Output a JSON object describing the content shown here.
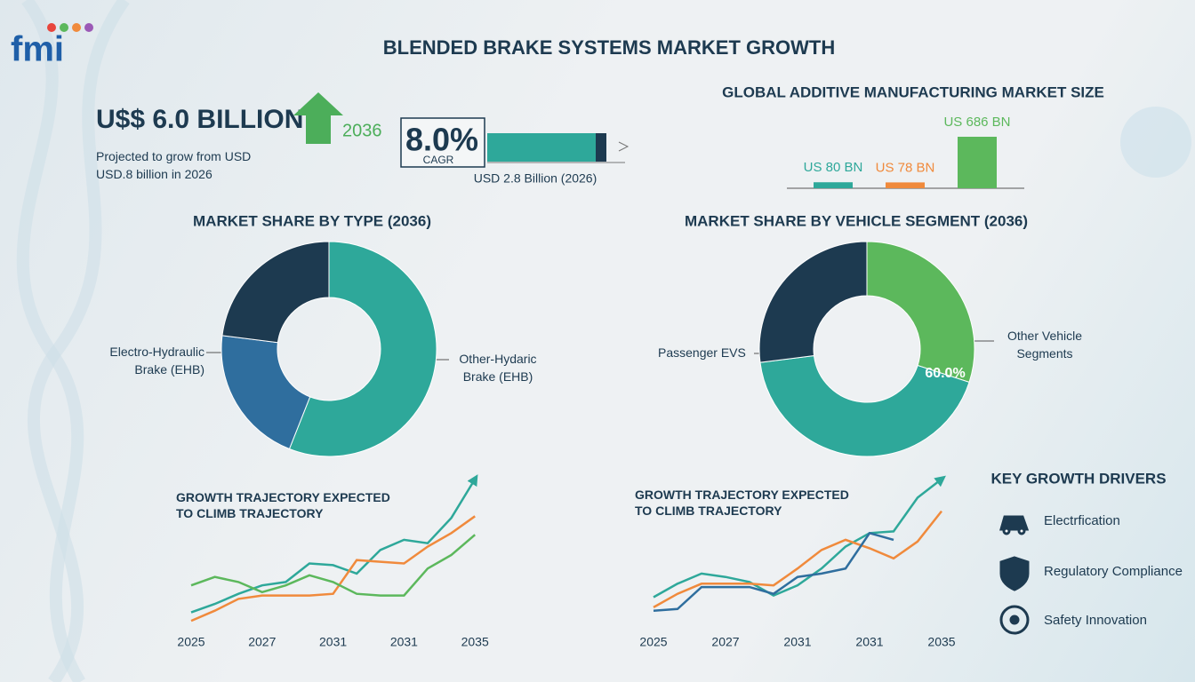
{
  "header": {
    "logo": "fmi",
    "title": "BLENDED BRAKE SYSTEMS MARKET GROWTH"
  },
  "headline": {
    "value_text": "U$$ 6.0 BILLION",
    "year": "2036",
    "description": "Projected to grow from USD USD.8 billion in 2026"
  },
  "cagr": {
    "value": "8.0%",
    "label": "CAGR",
    "base": "USD 2.8 Billion (2026)"
  },
  "drivers": {
    "title": "KEY GROWTH DRIVERS",
    "items": [
      "Electrfication",
      "Regulatory Compliance",
      "Safety Innovation"
    ]
  },
  "chart_data": [
    {
      "type": "bar",
      "title": "GLOBAL ADDITIVE MANUFACTURING MARKET SIZE",
      "values": [
        80,
        78,
        686
      ],
      "value_labels": [
        "US 80 BN",
        "US 78 BN",
        "US 686 BN"
      ],
      "colors": [
        "#2ea89a",
        "#f08a3c",
        "#5cb85c"
      ]
    },
    {
      "type": "donut",
      "title": "MARKET SHARE BY TYPE (2036)",
      "categories": [
        "Other-Hydaric Brake (EHB)",
        "Electro-Hydraulic Brake (EHB)",
        null
      ],
      "values": [
        56,
        21,
        23
      ],
      "colors": [
        "#2ea89a",
        "#2f6e9e",
        "#1d3a50"
      ]
    },
    {
      "type": "donut",
      "title": "MARKET SHARE BY VEHICLE SEGMENT (2036)",
      "categories": [
        "Other Vehicle Segments",
        null,
        "Passenger EVS"
      ],
      "values": [
        30,
        43,
        27
      ],
      "colors": [
        "#5cb85c",
        "#2ea89a",
        "#1d3a50"
      ],
      "annotation": "60.0%"
    },
    {
      "type": "line",
      "title": "GROWTH TRAJECTORY EXPECTED TO CLIMB TRAJECTORY",
      "categories": [
        "2025",
        null,
        null,
        "2027",
        null,
        null,
        "2031",
        null,
        null,
        "2031",
        null,
        null,
        "2035"
      ],
      "ylim": [
        0,
        100
      ],
      "series": [
        {
          "color": "#2ea89a",
          "values": [
            16,
            21,
            27,
            32,
            34,
            45,
            44,
            39,
            53,
            59,
            57,
            72,
            95
          ]
        },
        {
          "color": "#f08a3c",
          "values": [
            11,
            17,
            24,
            26,
            26,
            26,
            27,
            47,
            46,
            45,
            55,
            63,
            73
          ]
        },
        {
          "color": "#5cb85c",
          "values": [
            32,
            37,
            34,
            28,
            32,
            38,
            34,
            27,
            26,
            26,
            42,
            50,
            62
          ]
        }
      ]
    },
    {
      "type": "line",
      "title": "GROWTH TRAJECTORY EXPECTED TO CLIMB TRAJECTORY",
      "categories": [
        "2025",
        null,
        null,
        "2027",
        null,
        null,
        "2031",
        null,
        null,
        "2031",
        null,
        null,
        "2035"
      ],
      "ylim": [
        0,
        100
      ],
      "series": [
        {
          "color": "#2ea89a",
          "values": [
            25,
            33,
            39,
            37,
            34,
            26,
            32,
            42,
            55,
            63,
            64,
            84,
            95
          ]
        },
        {
          "color": "#f08a3c",
          "values": [
            19,
            27,
            33,
            33,
            33,
            32,
            42,
            53,
            59,
            54,
            48,
            58,
            76
          ]
        },
        {
          "color": "#2f6e9e",
          "values": [
            17,
            18,
            31,
            31,
            31,
            27,
            37,
            39,
            42,
            63,
            59,
            null,
            null
          ]
        }
      ]
    }
  ]
}
